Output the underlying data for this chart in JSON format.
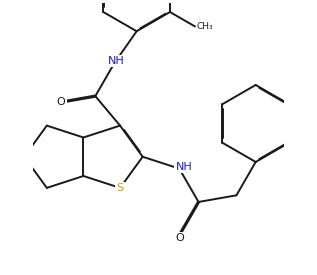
{
  "bg_color": "#ffffff",
  "line_color": "#1a1a1a",
  "S_color": "#c8a000",
  "N_color": "#1a1acd",
  "line_width": 1.4,
  "dbo": 0.018,
  "fig_width": 3.17,
  "fig_height": 2.75,
  "dpi": 100,
  "xlim": [
    -1.0,
    5.5
  ],
  "ylim": [
    -2.8,
    4.2
  ]
}
